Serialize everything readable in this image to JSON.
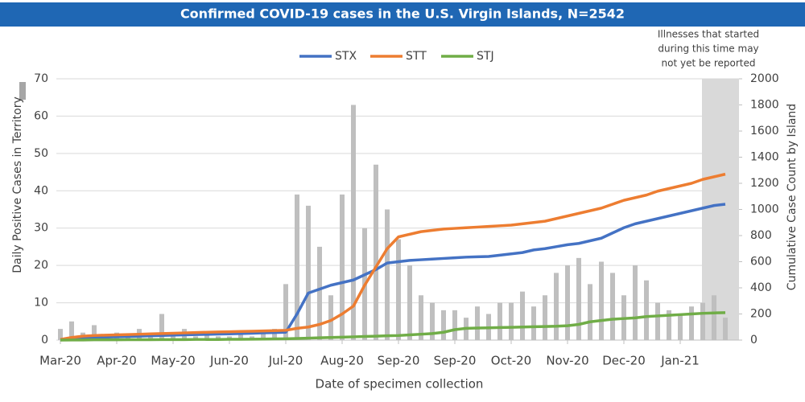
{
  "chart_data": {
    "type": "bar",
    "title": "Confirmed COVID-19 cases in the U.S. Virgin Islands, N=2542",
    "annotation": [
      "Illnesses that started",
      "during this time may",
      "not yet be reported"
    ],
    "x_label": "Date of specimen collection",
    "y_label": "Daily Positive Cases in Territory",
    "y2_label": "Cumulative Case Count by Island",
    "categories": [
      "Mar-20",
      null,
      null,
      null,
      null,
      "Apr-20",
      null,
      null,
      null,
      null,
      "May-20",
      null,
      null,
      null,
      null,
      "Jun-20",
      null,
      null,
      null,
      null,
      "Jul-20",
      null,
      null,
      null,
      null,
      "Aug-20",
      null,
      null,
      null,
      null,
      "Sep-20",
      null,
      null,
      null,
      null,
      "Sep-20",
      null,
      null,
      null,
      null,
      "Oct-20",
      null,
      null,
      null,
      null,
      "Nov-20",
      null,
      null,
      null,
      null,
      "Dec-20",
      null,
      null,
      null,
      null,
      "Jan-21",
      null,
      null,
      null,
      null
    ],
    "values": [
      3,
      5,
      2,
      4,
      1,
      2,
      1,
      3,
      1,
      7,
      1,
      3,
      1,
      2,
      1,
      1,
      2,
      1,
      2,
      3,
      15,
      39,
      36,
      25,
      12,
      39,
      63,
      30,
      47,
      35,
      27,
      20,
      12,
      10,
      8,
      8,
      6,
      9,
      7,
      10,
      10,
      13,
      9,
      12,
      18,
      20,
      22,
      15,
      21,
      18,
      12,
      20,
      16,
      10,
      8,
      7,
      9,
      10,
      12,
      6
    ],
    "color": "#bfbfbf",
    "ylim": [
      0,
      70
    ],
    "yticks": [
      0,
      10,
      20,
      30,
      40,
      50,
      60,
      70
    ],
    "y2lim": [
      0,
      2000
    ],
    "y2ticks": [
      0,
      200,
      400,
      600,
      800,
      1000,
      1200,
      1400,
      1600,
      1800,
      2000
    ],
    "series": [
      {
        "name": "STX",
        "color": "#4472c4",
        "type": "line",
        "axis": "y2",
        "values": [
          5,
          10,
          15,
          18,
          22,
          25,
          28,
          30,
          33,
          35,
          38,
          40,
          42,
          44,
          46,
          48,
          50,
          52,
          55,
          58,
          60,
          200,
          360,
          390,
          420,
          440,
          460,
          500,
          540,
          590,
          600,
          610,
          615,
          620,
          625,
          630,
          635,
          638,
          640,
          650,
          660,
          670,
          690,
          700,
          715,
          730,
          740,
          760,
          780,
          820,
          860,
          890,
          910,
          930,
          950,
          970,
          990,
          1010,
          1030,
          1040
        ]
      },
      {
        "name": "STT",
        "color": "#ed7d31",
        "type": "line",
        "axis": "y2",
        "values": [
          5,
          20,
          30,
          35,
          38,
          40,
          42,
          45,
          48,
          50,
          52,
          55,
          58,
          60,
          62,
          64,
          66,
          68,
          70,
          72,
          75,
          90,
          100,
          120,
          150,
          200,
          260,
          420,
          560,
          700,
          790,
          810,
          830,
          840,
          850,
          855,
          860,
          865,
          870,
          875,
          880,
          890,
          900,
          910,
          930,
          950,
          970,
          990,
          1010,
          1040,
          1070,
          1090,
          1110,
          1140,
          1160,
          1180,
          1200,
          1230,
          1250,
          1270
        ]
      },
      {
        "name": "STJ",
        "color": "#70ad47",
        "type": "line",
        "axis": "y2",
        "values": [
          0,
          1,
          1,
          2,
          2,
          2,
          3,
          3,
          3,
          4,
          4,
          4,
          5,
          5,
          5,
          6,
          6,
          7,
          8,
          9,
          10,
          12,
          15,
          18,
          20,
          22,
          25,
          28,
          30,
          33,
          35,
          40,
          45,
          50,
          60,
          80,
          90,
          92,
          94,
          96,
          98,
          100,
          102,
          104,
          106,
          110,
          120,
          140,
          150,
          160,
          165,
          170,
          180,
          185,
          190,
          195,
          200,
          205,
          208,
          210
        ]
      }
    ]
  }
}
